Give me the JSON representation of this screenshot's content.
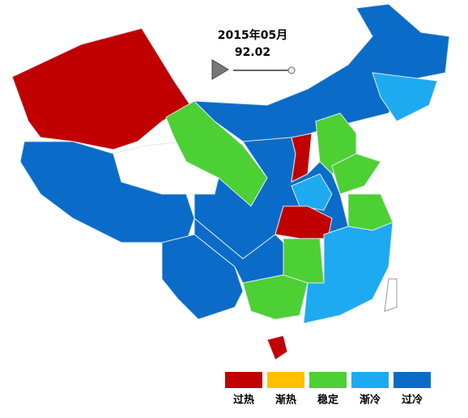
{
  "header": {
    "period": "2015年05月",
    "index": 92.02
  },
  "legend": [
    {
      "label": "过热",
      "color": "#c00000"
    },
    {
      "label": "渐热",
      "color": "#ffc000"
    },
    {
      "label": "稳定",
      "color": "#4cd033"
    },
    {
      "label": "渐冷",
      "color": "#1eaaf1"
    },
    {
      "label": "过冷",
      "color": "#0a6cc8"
    }
  ]
}
